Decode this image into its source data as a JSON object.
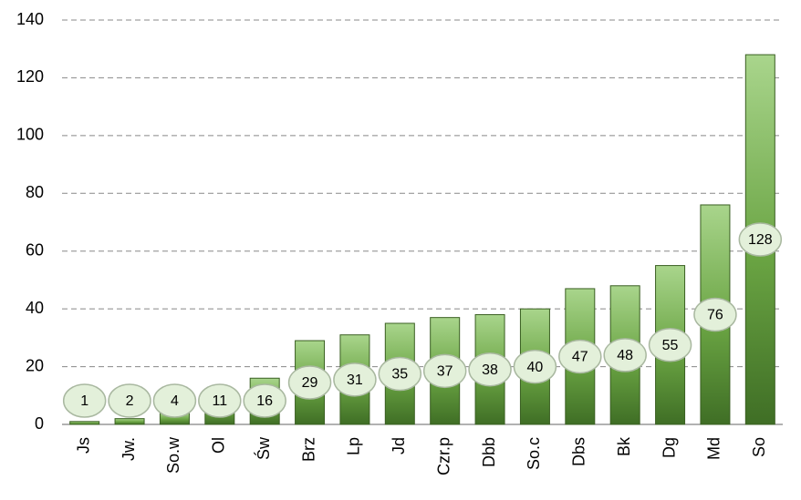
{
  "chart_data": {
    "type": "bar",
    "categories": [
      "Js",
      "Jw.",
      "So.w",
      "Ol",
      "Św",
      "Brz",
      "Lp",
      "Jd",
      "Czr.p",
      "Dbb",
      "So.c",
      "Dbs",
      "Bk",
      "Dg",
      "Md",
      "So"
    ],
    "values": [
      1,
      2,
      4,
      11,
      16,
      29,
      31,
      35,
      37,
      38,
      40,
      47,
      48,
      55,
      76,
      128
    ],
    "color": "#70a848",
    "ylim": [
      0,
      140
    ],
    "yticks": [
      0,
      20,
      40,
      60,
      80,
      100,
      120,
      140
    ],
    "grid": true
  }
}
